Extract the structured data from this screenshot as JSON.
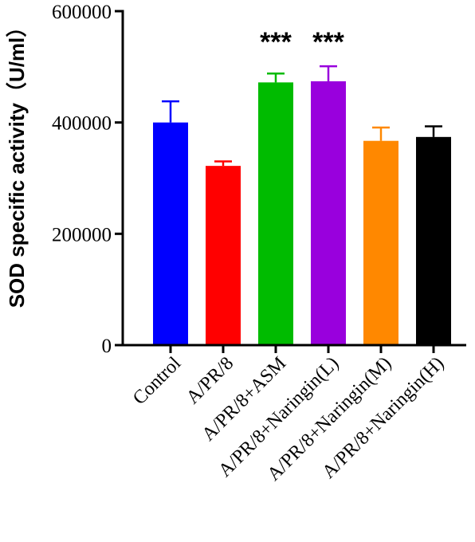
{
  "chart_data": {
    "type": "bar",
    "ylabel": "SOD specific activity（U/ml）",
    "xlabel": "",
    "ylim": [
      0,
      600000
    ],
    "yticks": [
      0,
      200000,
      400000,
      600000
    ],
    "ytick_labels": [
      "0",
      "200000",
      "400000",
      "600000"
    ],
    "categories": [
      "Control",
      "A/PR/8",
      "A/PR/8+ASM",
      "A/PR/8+Naringin(L)",
      "A/PR/8+Naringin(M)",
      "A/PR/8+Naringin(H)"
    ],
    "values": [
      400000,
      322000,
      472000,
      474000,
      367000,
      374000
    ],
    "errors": [
      38000,
      8000,
      16000,
      27000,
      24000,
      19000
    ],
    "colors": [
      "#0000ff",
      "#ff0000",
      "#00bb00",
      "#9900dd",
      "#ff8800",
      "#000000"
    ],
    "annotations": [
      {
        "category_index": 2,
        "text": "***"
      },
      {
        "category_index": 3,
        "text": "***"
      }
    ],
    "grid": false,
    "legend": "none"
  }
}
